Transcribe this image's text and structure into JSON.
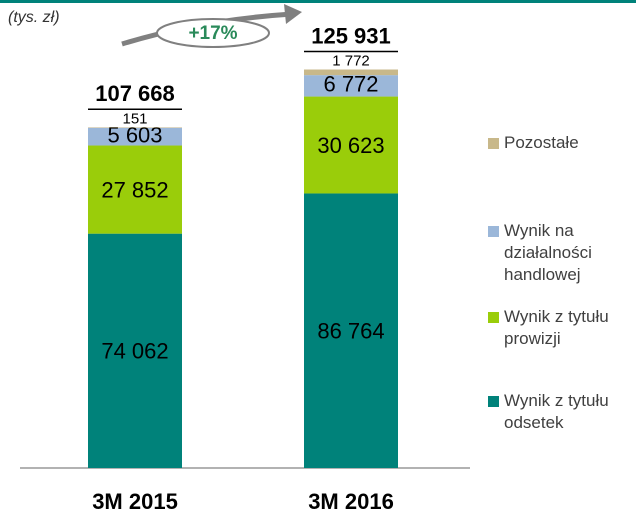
{
  "chart_data": {
    "type": "stacked_bar",
    "unit_label": "(tys. zł)",
    "categories": [
      "3M 2015",
      "3M 2016"
    ],
    "series": [
      {
        "name": "Wynik z tytułu odsetek",
        "color": "#00827a",
        "values": [
          74062,
          86764
        ],
        "value_labels": [
          "74 062",
          "86 764"
        ]
      },
      {
        "name": "Wynik z tytułu prowizji",
        "color": "#9acd0a",
        "values": [
          27852,
          30623
        ],
        "value_labels": [
          "27 852",
          "30 623"
        ]
      },
      {
        "name": "Wynik na działalności handlowej",
        "color": "#9bb7d9",
        "values": [
          5603,
          6772
        ],
        "value_labels": [
          "5 603",
          "6 772"
        ]
      },
      {
        "name": "Pozostałe",
        "color": "#c8b88a",
        "values": [
          151,
          1772
        ],
        "value_labels": [
          "151",
          "1 772"
        ]
      }
    ],
    "totals": [
      107668,
      125931
    ],
    "total_labels": [
      "107 668",
      "125 931"
    ],
    "growth_label": "+17%",
    "ylim": [
      0,
      140000
    ]
  }
}
